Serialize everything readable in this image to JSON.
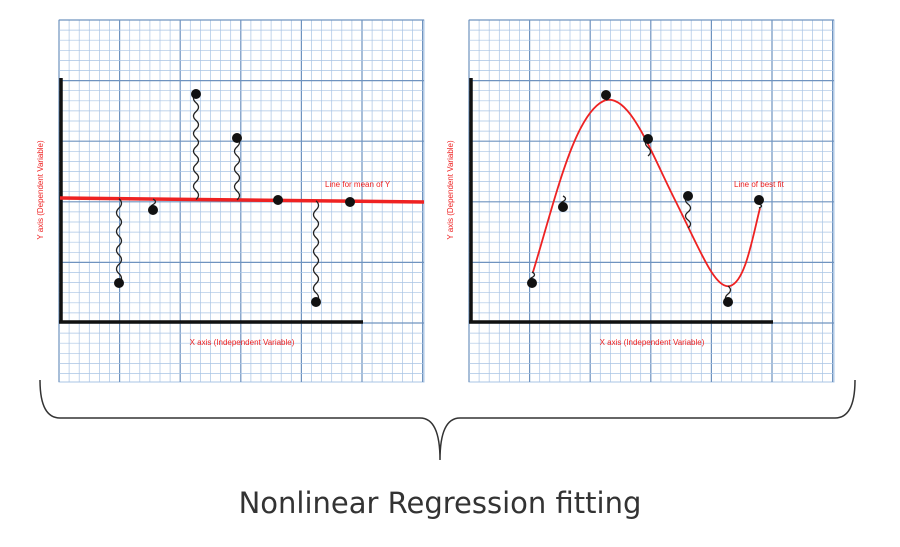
{
  "left_panel": {
    "y_axis_label": "Y axis (Dependent Variable)",
    "x_axis_label": "X axis (Independent Variable)",
    "line_label": "Line for mean of Y"
  },
  "right_panel": {
    "y_axis_label": "Y axis (Dependent Variable)",
    "x_axis_label": "X axis (Independent Variable)",
    "line_label": "Line of best fit"
  },
  "caption": "Nonlinear Regression fitting",
  "colors": {
    "grid_minor": "#a9c4e4",
    "grid_major": "#6f93bf",
    "fit_line": "#ee2222",
    "axes": "#111111",
    "caption": "#333333"
  }
}
